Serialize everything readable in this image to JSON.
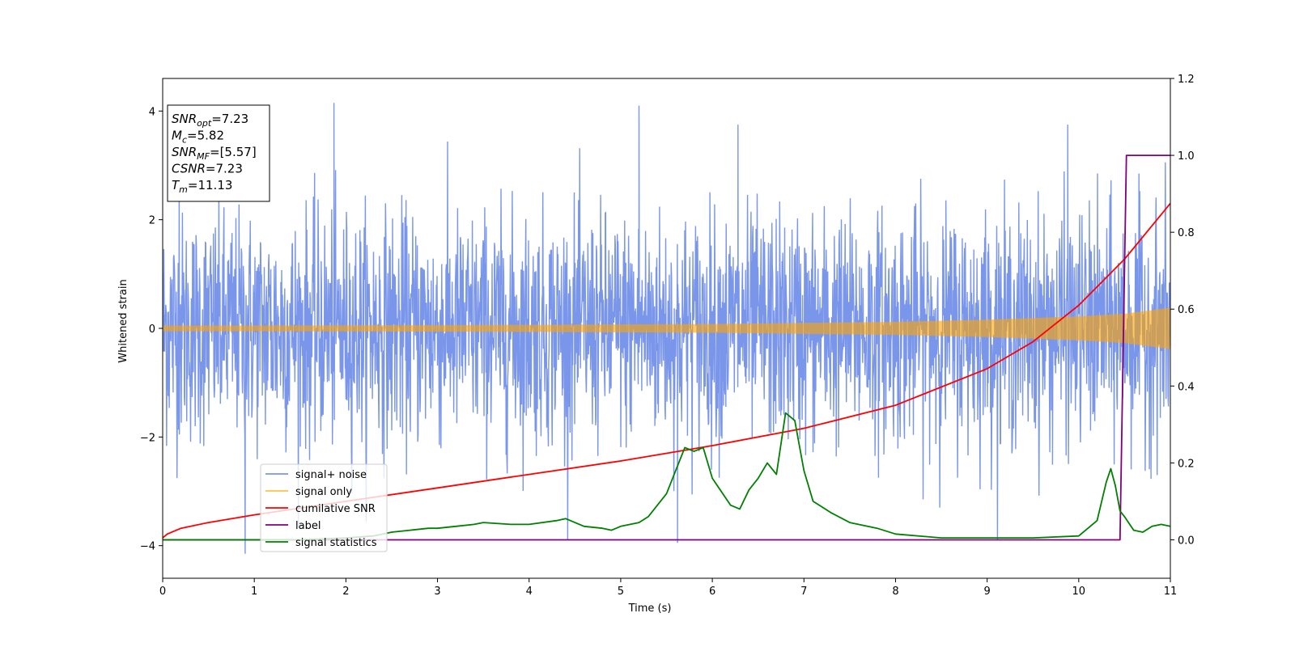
{
  "chart_data": {
    "type": "line",
    "xlabel": "Time (s)",
    "ylabel_left": "Whitened strain",
    "ylabel_right": "",
    "xlim": [
      0,
      11
    ],
    "ylim_left": [
      -4.6,
      4.6
    ],
    "ylim_right": [
      -0.1,
      1.2
    ],
    "x_ticks": [
      0,
      1,
      2,
      3,
      4,
      5,
      6,
      7,
      8,
      9,
      10,
      11
    ],
    "x_tick_labels": [
      "0",
      "1",
      "2",
      "3",
      "4",
      "5",
      "6",
      "7",
      "8",
      "9",
      "10",
      "11"
    ],
    "y_ticks_left": [
      -4,
      -2,
      0,
      2,
      4
    ],
    "y_tick_labels_left": [
      "−4",
      "−2",
      "0",
      "2",
      "4"
    ],
    "y_ticks_right": [
      0.0,
      0.2,
      0.4,
      0.6,
      0.8,
      1.0,
      1.2
    ],
    "y_tick_labels_right": [
      "0.0",
      "0.2",
      "0.4",
      "0.6",
      "0.8",
      "1.0",
      "1.2"
    ],
    "grid": false,
    "legend_position": "lower-left",
    "annotation": {
      "lines": [
        {
          "base": "SNR",
          "sub": "opt",
          "value": "=7.23"
        },
        {
          "base": "M",
          "sub": "c",
          "value": "=5.82"
        },
        {
          "base": "SNR",
          "sub": "MF",
          "value": "=[5.57]"
        },
        {
          "base": "CSNR",
          "sub": "",
          "value": "=7.23"
        },
        {
          "base": "T",
          "sub": "m",
          "value": "=11.13"
        }
      ]
    },
    "series": [
      {
        "name": "signal+ noise",
        "axis": "left",
        "color": "#4169e1",
        "kind": "noise",
        "noise_sigma": 1.0,
        "notable_points": [
          [
            0.18,
            2.9
          ],
          [
            0.9,
            -4.15
          ],
          [
            1.87,
            4.15
          ],
          [
            5.2,
            4.1
          ],
          [
            5.62,
            -3.95
          ],
          [
            6.28,
            3.75
          ],
          [
            9.88,
            3.75
          ]
        ]
      },
      {
        "name": "signal only",
        "axis": "left",
        "color": "#ffa500",
        "kind": "chirp",
        "amplitude_envelope": [
          [
            0,
            0.05
          ],
          [
            2,
            0.055
          ],
          [
            4,
            0.065
          ],
          [
            6,
            0.08
          ],
          [
            8,
            0.12
          ],
          [
            9,
            0.16
          ],
          [
            10,
            0.22
          ],
          [
            10.5,
            0.27
          ],
          [
            11,
            0.38
          ]
        ]
      },
      {
        "name": "cumilative SNR",
        "axis": "right",
        "color": "#ff0000",
        "x": [
          0,
          0.05,
          0.2,
          0.5,
          1,
          2,
          3,
          4,
          5,
          6,
          7,
          8,
          9,
          9.5,
          10,
          10.5,
          11
        ],
        "y": [
          0.005,
          0.015,
          0.03,
          0.045,
          0.065,
          0.1,
          0.135,
          0.17,
          0.205,
          0.245,
          0.29,
          0.35,
          0.445,
          0.515,
          0.61,
          0.73,
          0.875
        ]
      },
      {
        "name": "label",
        "axis": "right",
        "color": "#800080",
        "x": [
          0,
          10.45,
          10.52,
          11
        ],
        "y": [
          0.0,
          0.0,
          1.0,
          1.0
        ]
      },
      {
        "name": "signal statistics",
        "axis": "right",
        "color": "#008000",
        "x": [
          0,
          0.5,
          1.0,
          1.5,
          2.0,
          2.3,
          2.5,
          2.7,
          2.9,
          3.0,
          3.2,
          3.4,
          3.5,
          3.8,
          4.0,
          4.3,
          4.4,
          4.6,
          4.8,
          4.9,
          5.0,
          5.2,
          5.3,
          5.5,
          5.6,
          5.7,
          5.8,
          5.9,
          6.0,
          6.2,
          6.3,
          6.4,
          6.5,
          6.6,
          6.7,
          6.8,
          6.9,
          7.0,
          7.1,
          7.3,
          7.5,
          7.8,
          8.0,
          8.5,
          9.0,
          9.5,
          10.0,
          10.2,
          10.3,
          10.35,
          10.4,
          10.45,
          10.5,
          10.6,
          10.7,
          10.8,
          10.9,
          11.0
        ],
        "y": [
          0.0,
          0.0,
          0.0,
          0.0,
          0.005,
          0.01,
          0.02,
          0.025,
          0.03,
          0.03,
          0.035,
          0.04,
          0.045,
          0.04,
          0.04,
          0.05,
          0.055,
          0.035,
          0.03,
          0.025,
          0.035,
          0.045,
          0.06,
          0.12,
          0.18,
          0.24,
          0.23,
          0.24,
          0.16,
          0.09,
          0.08,
          0.13,
          0.16,
          0.2,
          0.17,
          0.33,
          0.31,
          0.18,
          0.1,
          0.07,
          0.045,
          0.03,
          0.015,
          0.005,
          0.005,
          0.005,
          0.01,
          0.05,
          0.15,
          0.185,
          0.14,
          0.075,
          0.06,
          0.025,
          0.02,
          0.035,
          0.04,
          0.035
        ]
      }
    ]
  }
}
